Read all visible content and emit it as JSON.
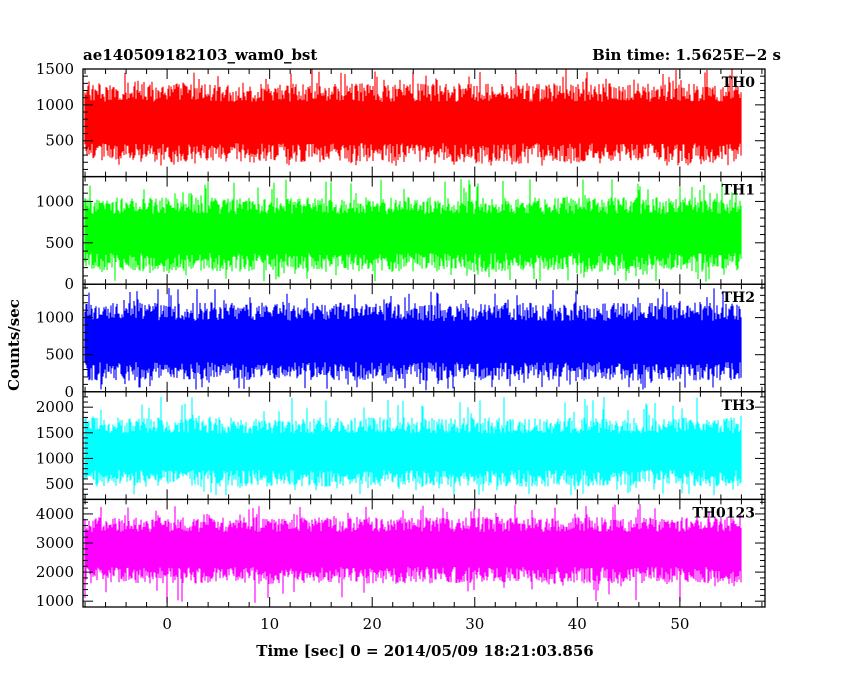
{
  "chart_data": {
    "type": "line",
    "title_left": "ae140509182103_wam0_bst",
    "title_right": "Bin time: 1.5625E−2 s",
    "xlabel": "Time [sec] 0 = 2014/05/09 18:21:03.856",
    "ylabel": "Counts/sec",
    "xlim": [
      -8.2,
      58.3
    ],
    "x_ticks": [
      0,
      10,
      20,
      30,
      40,
      50
    ],
    "data_x_range": [
      -8.0,
      56.0
    ],
    "bin_time": 0.015625,
    "grid": false,
    "panels": [
      {
        "label": "TH0",
        "color": "#ff0000",
        "ylim": [
          0,
          1500
        ],
        "y_ticks": [
          500,
          1000,
          1500
        ],
        "y_tick_labels": [
          "500",
          "1000",
          "1500"
        ],
        "typical_min": 200,
        "typical_max": 1300,
        "approx_mean": 730,
        "extreme_min": 150,
        "extreme_max": 1500
      },
      {
        "label": "TH1",
        "color": "#00ff00",
        "ylim": [
          0,
          1300
        ],
        "y_ticks": [
          0,
          500,
          1000
        ],
        "y_tick_labels": [
          "0",
          "500",
          "1000"
        ],
        "typical_min": 150,
        "typical_max": 1050,
        "approx_mean": 600,
        "extreme_min": 30,
        "extreme_max": 1270
      },
      {
        "label": "TH2",
        "color": "#0000ff",
        "ylim": [
          0,
          1450
        ],
        "y_ticks": [
          0,
          500,
          1000
        ],
        "y_tick_labels": [
          "0",
          "500",
          "1000"
        ],
        "typical_min": 150,
        "typical_max": 1200,
        "approx_mean": 650,
        "extreme_min": 20,
        "extreme_max": 1400
      },
      {
        "label": "TH3",
        "color": "#00ffff",
        "ylim": [
          200,
          2300
        ],
        "y_ticks": [
          500,
          1000,
          1500,
          2000
        ],
        "y_tick_labels": [
          "500",
          "1000",
          "1500",
          "2000"
        ],
        "typical_min": 450,
        "typical_max": 1800,
        "approx_mean": 1100,
        "extreme_min": 280,
        "extreme_max": 2200
      },
      {
        "label": "TH0123",
        "color": "#ff00ff",
        "ylim": [
          800,
          4500
        ],
        "y_ticks": [
          1000,
          2000,
          3000,
          4000
        ],
        "y_tick_labels": [
          "1000",
          "2000",
          "3000",
          "4000"
        ],
        "typical_min": 1600,
        "typical_max": 3900,
        "approx_mean": 2750,
        "extreme_min": 900,
        "extreme_max": 4350
      }
    ]
  }
}
